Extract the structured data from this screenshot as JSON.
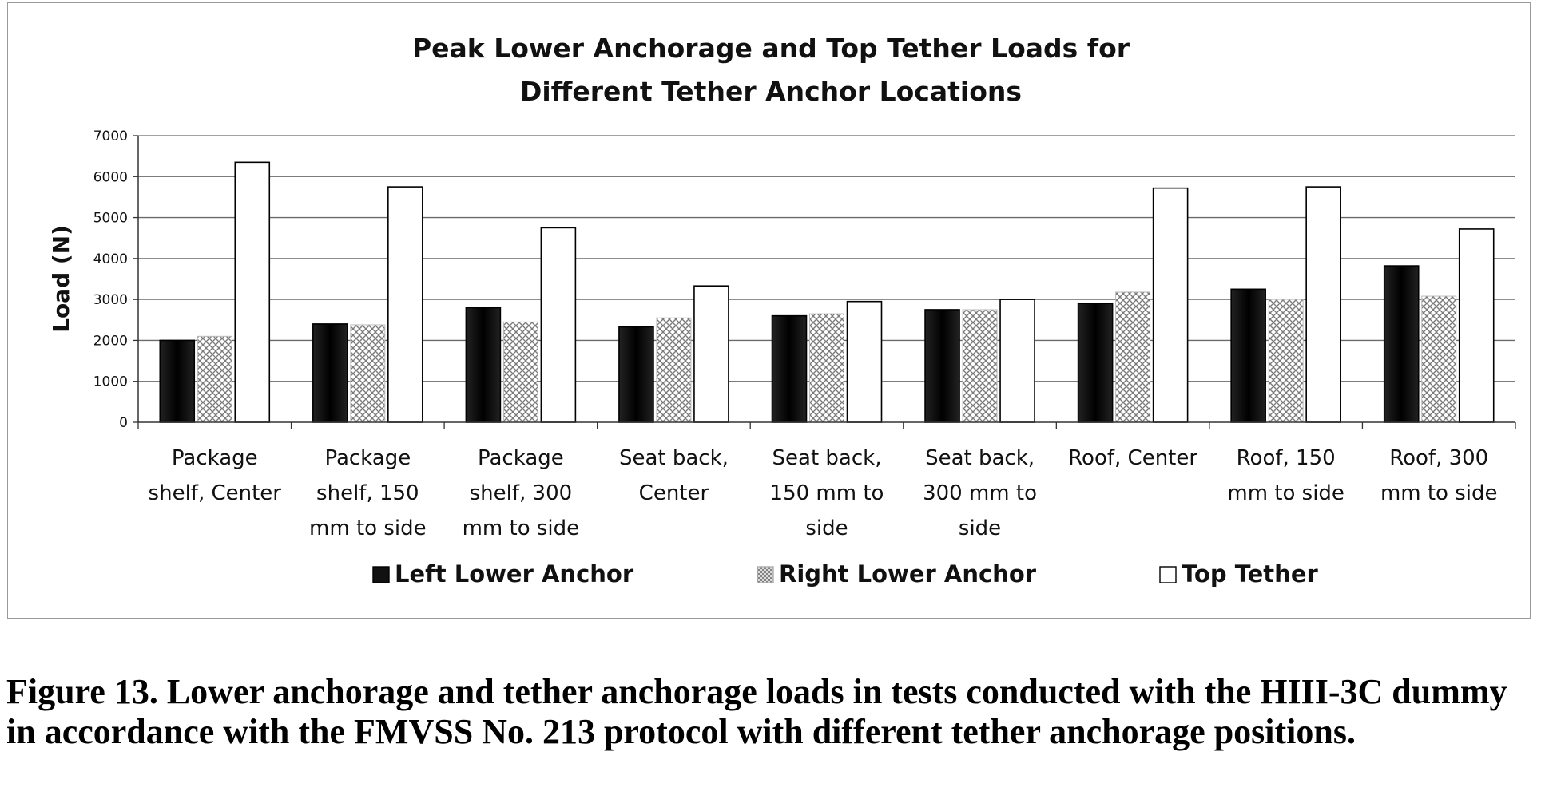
{
  "chart_data": {
    "type": "bar",
    "title_lines": [
      "Peak Lower Anchorage and Top Tether Loads for",
      "Different Tether Anchor Locations"
    ],
    "ylabel": "Load (N)",
    "xlabel": "",
    "ylim": [
      0,
      7000
    ],
    "yticks": [
      0,
      1000,
      2000,
      3000,
      4000,
      5000,
      6000,
      7000
    ],
    "grid": true,
    "legend_position": "bottom",
    "categories": [
      [
        "Package",
        "shelf, Center"
      ],
      [
        "Package",
        "shelf, 150",
        "mm to side"
      ],
      [
        "Package",
        "shelf, 300",
        "mm to side"
      ],
      [
        "Seat back,",
        "Center"
      ],
      [
        "Seat back,",
        "150 mm to",
        "side"
      ],
      [
        "Seat back,",
        "300 mm to",
        "side"
      ],
      [
        "Roof, Center"
      ],
      [
        "Roof, 150",
        "mm to side"
      ],
      [
        "Roof, 300",
        "mm to side"
      ]
    ],
    "series": [
      {
        "name": "Left Lower Anchor",
        "fill": "#111111",
        "values": [
          2000,
          2400,
          2800,
          2330,
          2600,
          2750,
          2900,
          3250,
          3820
        ]
      },
      {
        "name": "Right Lower Anchor",
        "fill": "#d4d4d4",
        "values": [
          2100,
          2380,
          2450,
          2550,
          2650,
          2750,
          3180,
          3000,
          3080
        ]
      },
      {
        "name": "Top Tether",
        "fill": "#ffffff",
        "values": [
          6350,
          5750,
          4750,
          3330,
          2950,
          3000,
          5720,
          5750,
          4720
        ]
      }
    ]
  },
  "caption": {
    "text": "Figure 13.  Lower anchorage and tether anchorage loads in tests conducted with the HIII-3C dummy in accordance with the FMVSS No. 213 protocol with different tether anchorage positions."
  }
}
